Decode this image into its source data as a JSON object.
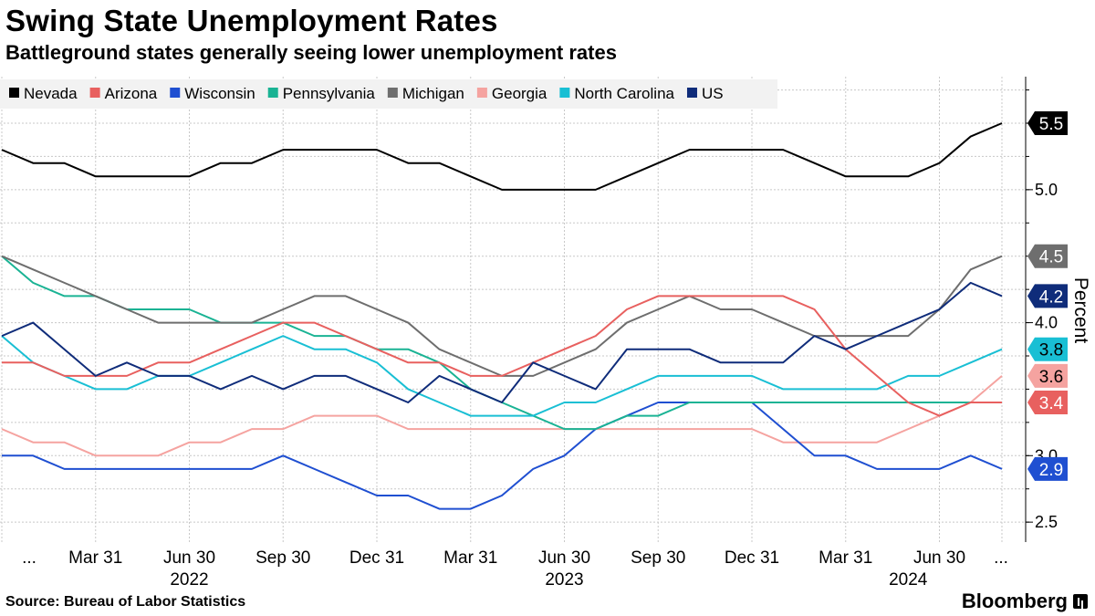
{
  "header": {
    "title": "Swing State Unemployment Rates",
    "subtitle": "Battleground states generally seeing lower unemployment rates"
  },
  "footer": {
    "source": "Source: Bureau of Labor Statistics",
    "brand": "Bloomberg"
  },
  "chart_data": {
    "type": "line",
    "title": "Swing State Unemployment Rates",
    "subtitle": "Battleground states generally seeing lower unemployment rates",
    "xlabel": "",
    "ylabel": "Percent",
    "ylim": [
      2.35,
      5.85
    ],
    "yticks": [
      2.5,
      3.0,
      4.0,
      5.0
    ],
    "ytick_labels": [
      "2.5",
      "3.0",
      "4.0",
      "5.0"
    ],
    "x": [
      "2021-12",
      "2022-01",
      "2022-02",
      "2022-03",
      "2022-04",
      "2022-05",
      "2022-06",
      "2022-07",
      "2022-08",
      "2022-09",
      "2022-10",
      "2022-11",
      "2022-12",
      "2023-01",
      "2023-02",
      "2023-03",
      "2023-04",
      "2023-05",
      "2023-06",
      "2023-07",
      "2023-08",
      "2023-09",
      "2023-10",
      "2023-11",
      "2023-12",
      "2024-01",
      "2024-02",
      "2024-03",
      "2024-04",
      "2024-05",
      "2024-06",
      "2024-07",
      "2024-08"
    ],
    "xtick_labels": [
      {
        "i": 0,
        "label": "..."
      },
      {
        "i": 3,
        "label": "Mar 31"
      },
      {
        "i": 6,
        "label": "Jun 30"
      },
      {
        "i": 9,
        "label": "Sep 30"
      },
      {
        "i": 12,
        "label": "Dec 31"
      },
      {
        "i": 15,
        "label": "Mar 31"
      },
      {
        "i": 18,
        "label": "Jun 30"
      },
      {
        "i": 21,
        "label": "Sep 30"
      },
      {
        "i": 24,
        "label": "Dec 31"
      },
      {
        "i": 27,
        "label": "Mar 31"
      },
      {
        "i": 30,
        "label": "Jun 30"
      },
      {
        "i": 32,
        "label": "..."
      }
    ],
    "year_labels": [
      {
        "i": 6,
        "label": "2022"
      },
      {
        "i": 18,
        "label": "2023"
      },
      {
        "i": 29,
        "label": "2024"
      }
    ],
    "legend_position": "top-left",
    "grid": true,
    "series": [
      {
        "name": "Nevada",
        "color": "#000000",
        "last_label": "5.5",
        "values": [
          5.3,
          5.2,
          5.2,
          5.1,
          5.1,
          5.1,
          5.1,
          5.2,
          5.2,
          5.3,
          5.3,
          5.3,
          5.3,
          5.2,
          5.2,
          5.1,
          5.0,
          5.0,
          5.0,
          5.0,
          5.1,
          5.2,
          5.3,
          5.3,
          5.3,
          5.3,
          5.2,
          5.1,
          5.1,
          5.1,
          5.2,
          5.4,
          5.5
        ]
      },
      {
        "name": "Arizona",
        "color": "#e8605f",
        "last_label": "3.4",
        "values": [
          3.7,
          3.7,
          3.6,
          3.6,
          3.6,
          3.7,
          3.7,
          3.8,
          3.9,
          4.0,
          4.0,
          3.9,
          3.8,
          3.7,
          3.7,
          3.6,
          3.6,
          3.7,
          3.8,
          3.9,
          4.1,
          4.2,
          4.2,
          4.2,
          4.2,
          4.2,
          4.1,
          3.8,
          3.6,
          3.4,
          3.3,
          3.4,
          3.4
        ]
      },
      {
        "name": "Wisconsin",
        "color": "#1f4fd1",
        "last_label": "2.9",
        "values": [
          3.0,
          3.0,
          2.9,
          2.9,
          2.9,
          2.9,
          2.9,
          2.9,
          2.9,
          3.0,
          2.9,
          2.8,
          2.7,
          2.7,
          2.6,
          2.6,
          2.7,
          2.9,
          3.0,
          3.2,
          3.3,
          3.4,
          3.4,
          3.4,
          3.4,
          3.2,
          3.0,
          3.0,
          2.9,
          2.9,
          2.9,
          3.0,
          2.9
        ]
      },
      {
        "name": "Pennsylvania",
        "color": "#1ab394",
        "last_label": "",
        "values": [
          4.5,
          4.3,
          4.2,
          4.2,
          4.1,
          4.1,
          4.1,
          4.0,
          4.0,
          4.0,
          3.9,
          3.9,
          3.8,
          3.8,
          3.7,
          3.5,
          3.4,
          3.3,
          3.2,
          3.2,
          3.3,
          3.3,
          3.4,
          3.4,
          3.4,
          3.4,
          3.4,
          3.4,
          3.4,
          3.4,
          3.4,
          3.4,
          3.4
        ]
      },
      {
        "name": "Michigan",
        "color": "#6e6e6e",
        "last_label": "4.5",
        "values": [
          4.5,
          4.4,
          4.3,
          4.2,
          4.1,
          4.0,
          4.0,
          4.0,
          4.0,
          4.1,
          4.2,
          4.2,
          4.1,
          4.0,
          3.8,
          3.7,
          3.6,
          3.6,
          3.7,
          3.8,
          4.0,
          4.1,
          4.2,
          4.1,
          4.1,
          4.0,
          3.9,
          3.9,
          3.9,
          3.9,
          4.1,
          4.4,
          4.5
        ]
      },
      {
        "name": "Georgia",
        "color": "#f5a3a0",
        "last_label": "3.6",
        "values": [
          3.2,
          3.1,
          3.1,
          3.0,
          3.0,
          3.0,
          3.1,
          3.1,
          3.2,
          3.2,
          3.3,
          3.3,
          3.3,
          3.2,
          3.2,
          3.2,
          3.2,
          3.2,
          3.2,
          3.2,
          3.2,
          3.2,
          3.2,
          3.2,
          3.2,
          3.1,
          3.1,
          3.1,
          3.1,
          3.2,
          3.3,
          3.4,
          3.6
        ]
      },
      {
        "name": "North Carolina",
        "color": "#19bfd4",
        "last_label": "3.8",
        "values": [
          3.9,
          3.7,
          3.6,
          3.5,
          3.5,
          3.6,
          3.6,
          3.7,
          3.8,
          3.9,
          3.8,
          3.8,
          3.7,
          3.5,
          3.4,
          3.3,
          3.3,
          3.3,
          3.4,
          3.4,
          3.5,
          3.6,
          3.6,
          3.6,
          3.6,
          3.5,
          3.5,
          3.5,
          3.5,
          3.6,
          3.6,
          3.7,
          3.8
        ]
      },
      {
        "name": "US",
        "color": "#0f2c7a",
        "last_label": "4.2",
        "values": [
          3.9,
          4.0,
          3.8,
          3.6,
          3.7,
          3.6,
          3.6,
          3.5,
          3.6,
          3.5,
          3.6,
          3.6,
          3.5,
          3.4,
          3.6,
          3.5,
          3.4,
          3.7,
          3.6,
          3.5,
          3.8,
          3.8,
          3.8,
          3.7,
          3.7,
          3.7,
          3.9,
          3.8,
          3.9,
          4.0,
          4.1,
          4.3,
          4.2
        ]
      }
    ]
  }
}
